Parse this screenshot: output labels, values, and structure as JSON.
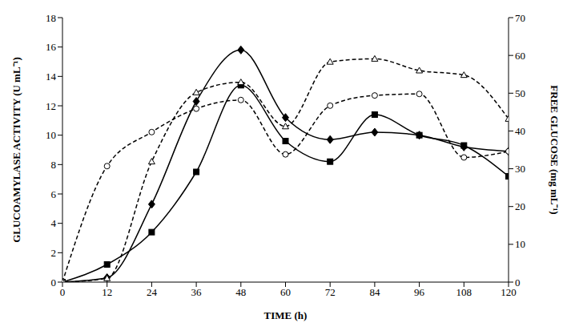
{
  "chart_data": {
    "type": "line",
    "xlabel": "TIME (h)",
    "ylabel": "GLUCOAMYLASE ACTIVITY (U mL⁻¹)",
    "y2label": "FREE GLUCOSE (mg mL⁻¹)",
    "x": [
      0,
      12,
      24,
      36,
      48,
      60,
      72,
      84,
      96,
      108,
      120
    ],
    "xlim": [
      0,
      120
    ],
    "xticks": [
      0,
      12,
      24,
      36,
      48,
      60,
      72,
      84,
      96,
      108,
      120
    ],
    "ylim": [
      0,
      18
    ],
    "yticks": [
      0,
      2,
      4,
      6,
      8,
      10,
      12,
      14,
      16,
      18
    ],
    "y2lim": [
      0,
      70
    ],
    "y2ticks": [
      0,
      10,
      20,
      30,
      40,
      50,
      60,
      70
    ],
    "grid": false,
    "series": [
      {
        "color": "#000000",
        "marker": "diamond",
        "line_style": "solid",
        "values": [
          0,
          0.3,
          5.3,
          12.3,
          15.8,
          11.2,
          9.7,
          10.2,
          10.0,
          9.2,
          8.9
        ]
      },
      {
        "color": "#000000",
        "marker": "square",
        "line_style": "solid",
        "values": [
          0,
          1.2,
          3.4,
          7.5,
          13.4,
          9.6,
          8.2,
          11.4,
          10.0,
          9.3,
          7.2
        ]
      },
      {
        "color": "#000000",
        "marker": "circle",
        "line_style": "dashed",
        "axis": "y2",
        "values": [
          0,
          30.7,
          39.7,
          45.9,
          48.2,
          33.8,
          46.7,
          49.4,
          49.8,
          33,
          34.6
        ]
      },
      {
        "color": "#000000",
        "marker": "triangle",
        "line_style": "dashed",
        "axis": "y2",
        "values": [
          0,
          1,
          31.9,
          50.2,
          52.9,
          41.2,
          58.3,
          59.1,
          56,
          54.8,
          43.2
        ]
      }
    ]
  }
}
